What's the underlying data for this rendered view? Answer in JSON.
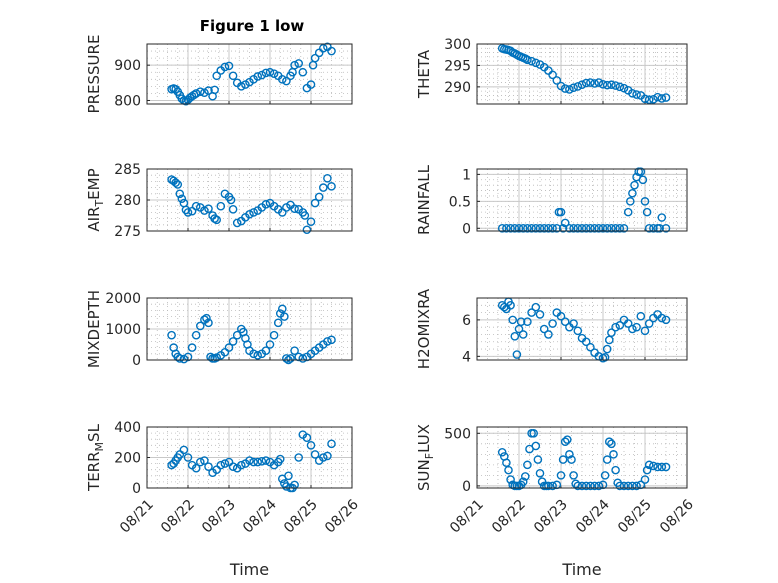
{
  "figure_title": "Figure 1 low",
  "xlabel": "Time",
  "x_tick_labels": [
    "08/21",
    "08/22",
    "08/23",
    "08/24",
    "08/25",
    "08/26"
  ],
  "colors": {
    "marker": "#0072BD",
    "axis": "#262626",
    "grid": "#c8c8c8"
  },
  "chart_data": [
    {
      "type": "scatter",
      "title": "Figure 1 low",
      "ylabel": "PRESSURE",
      "xlim": [
        0,
        5
      ],
      "ylim": [
        790,
        960
      ],
      "yticks": [
        800,
        900
      ],
      "series": [
        {
          "x": [
            0.6,
            0.65,
            0.7,
            0.75,
            0.8,
            0.85,
            0.9,
            0.95,
            1.0,
            1.05,
            1.1,
            1.15,
            1.2,
            1.3,
            1.4,
            1.5,
            1.6,
            1.65,
            1.7,
            1.8,
            1.9,
            2.0,
            2.1,
            2.2,
            2.3,
            2.4,
            2.5,
            2.6,
            2.7,
            2.8,
            2.9,
            3.0,
            3.1,
            3.2,
            3.3,
            3.4,
            3.5,
            3.55,
            3.6,
            3.7,
            3.8,
            3.9,
            4.0,
            4.05,
            4.1,
            4.2,
            4.3,
            4.4,
            4.5
          ],
          "y": [
            832,
            834,
            832,
            825,
            815,
            805,
            800,
            798,
            802,
            808,
            812,
            816,
            820,
            825,
            822,
            828,
            812,
            830,
            870,
            885,
            895,
            898,
            870,
            850,
            840,
            845,
            852,
            860,
            868,
            872,
            878,
            880,
            876,
            870,
            860,
            855,
            870,
            880,
            900,
            905,
            880,
            835,
            845,
            900,
            920,
            935,
            948,
            952,
            940
          ]
        }
      ]
    },
    {
      "type": "scatter",
      "ylabel": "THETA",
      "xlim": [
        0,
        5
      ],
      "ylim": [
        286,
        300
      ],
      "yticks": [
        290,
        295,
        300
      ],
      "series": [
        {
          "x": [
            0.6,
            0.65,
            0.7,
            0.75,
            0.8,
            0.85,
            0.9,
            0.95,
            1.0,
            1.05,
            1.1,
            1.15,
            1.2,
            1.3,
            1.4,
            1.5,
            1.6,
            1.7,
            1.8,
            1.9,
            2.0,
            2.1,
            2.2,
            2.3,
            2.4,
            2.5,
            2.6,
            2.7,
            2.8,
            2.9,
            3.0,
            3.1,
            3.2,
            3.3,
            3.4,
            3.5,
            3.6,
            3.7,
            3.8,
            3.9,
            4.0,
            4.1,
            4.2,
            4.3,
            4.4,
            4.5
          ],
          "y": [
            299,
            298.8,
            298.7,
            298.6,
            298.4,
            298,
            297.8,
            297.5,
            297.2,
            297,
            296.8,
            296.6,
            296.3,
            296,
            295.6,
            295.2,
            294.6,
            293.8,
            292.8,
            291.5,
            290.2,
            289.6,
            289.4,
            289.8,
            290.1,
            290.5,
            290.9,
            291,
            290.8,
            291,
            290.6,
            290.4,
            290.5,
            290.3,
            290,
            289.7,
            289.2,
            288.5,
            288.2,
            288,
            287.2,
            287,
            287.1,
            287.6,
            287.3,
            287.5
          ]
        }
      ]
    },
    {
      "type": "scatter",
      "ylabel": "AIR_TEMP",
      "xlim": [
        0,
        5
      ],
      "ylim": [
        275,
        285
      ],
      "yticks": [
        275,
        280,
        285
      ],
      "series": [
        {
          "x": [
            0.6,
            0.65,
            0.7,
            0.75,
            0.8,
            0.85,
            0.9,
            0.95,
            1.0,
            1.1,
            1.2,
            1.3,
            1.4,
            1.5,
            1.6,
            1.65,
            1.7,
            1.8,
            1.9,
            2.0,
            2.05,
            2.1,
            2.2,
            2.3,
            2.4,
            2.5,
            2.6,
            2.7,
            2.8,
            2.9,
            3.0,
            3.1,
            3.2,
            3.3,
            3.4,
            3.5,
            3.6,
            3.7,
            3.8,
            3.85,
            3.9,
            4.0,
            4.1,
            4.2,
            4.3,
            4.4,
            4.5
          ],
          "y": [
            283.3,
            283.1,
            282.8,
            282.5,
            281,
            280.2,
            279.5,
            278.4,
            278,
            278.2,
            279,
            278.8,
            278.3,
            278.6,
            277.5,
            277,
            276.8,
            279,
            281,
            280.5,
            280,
            278.5,
            276.3,
            276.6,
            277.2,
            277.7,
            278,
            278.3,
            278.8,
            279.3,
            279.5,
            279,
            278.5,
            278,
            278.8,
            279.2,
            278.6,
            278.5,
            278,
            277.5,
            275.2,
            276.5,
            279.5,
            280.5,
            282,
            283.5,
            282.2
          ]
        }
      ]
    },
    {
      "type": "scatter",
      "ylabel": "RAINFALL",
      "xlim": [
        0,
        5
      ],
      "ylim": [
        -0.05,
        1.1
      ],
      "yticks": [
        0,
        0.5,
        1
      ],
      "series": [
        {
          "x": [
            0.6,
            0.7,
            0.8,
            0.9,
            1.0,
            1.1,
            1.2,
            1.3,
            1.4,
            1.5,
            1.6,
            1.7,
            1.8,
            1.9,
            1.95,
            2.0,
            2.05,
            2.1,
            2.2,
            2.3,
            2.4,
            2.5,
            2.6,
            2.7,
            2.8,
            2.9,
            3.0,
            3.1,
            3.2,
            3.3,
            3.4,
            3.5,
            3.6,
            3.65,
            3.7,
            3.75,
            3.8,
            3.85,
            3.9,
            3.95,
            4.0,
            4.05,
            4.1,
            4.2,
            4.3,
            4.35,
            4.4,
            4.5
          ],
          "y": [
            0,
            0,
            0,
            0,
            0,
            0,
            0,
            0,
            0,
            0,
            0,
            0,
            0,
            0,
            0.3,
            0.3,
            0,
            0.1,
            0,
            0,
            0,
            0,
            0,
            0,
            0,
            0,
            0,
            0,
            0,
            0,
            0,
            0,
            0.3,
            0.5,
            0.65,
            0.8,
            0.95,
            1.05,
            1.05,
            0.9,
            0.5,
            0.3,
            0,
            0,
            0,
            0,
            0.2,
            0
          ]
        }
      ]
    },
    {
      "type": "scatter",
      "ylabel": "MIXDEPTH",
      "xlim": [
        0,
        5
      ],
      "ylim": [
        0,
        2000
      ],
      "yticks": [
        0,
        1000,
        2000
      ],
      "series": [
        {
          "x": [
            0.6,
            0.65,
            0.7,
            0.75,
            0.8,
            0.9,
            1.0,
            1.1,
            1.2,
            1.3,
            1.4,
            1.45,
            1.5,
            1.55,
            1.6,
            1.65,
            1.7,
            1.8,
            1.9,
            2.0,
            2.1,
            2.2,
            2.3,
            2.35,
            2.4,
            2.45,
            2.5,
            2.6,
            2.7,
            2.8,
            2.9,
            3.0,
            3.1,
            3.2,
            3.25,
            3.3,
            3.35,
            3.4,
            3.45,
            3.5,
            3.6,
            3.7,
            3.8,
            3.9,
            4.0,
            4.1,
            4.2,
            4.3,
            4.4,
            4.5
          ],
          "y": [
            800,
            400,
            200,
            100,
            50,
            30,
            100,
            400,
            800,
            1100,
            1300,
            1350,
            1200,
            100,
            50,
            50,
            80,
            150,
            250,
            400,
            600,
            800,
            1000,
            900,
            700,
            500,
            300,
            200,
            150,
            200,
            300,
            500,
            800,
            1200,
            1500,
            1650,
            1400,
            50,
            0,
            50,
            300,
            100,
            50,
            100,
            200,
            300,
            400,
            500,
            600,
            650
          ]
        }
      ]
    },
    {
      "type": "scatter",
      "ylabel": "H2OMIXRA",
      "xlim": [
        0,
        5
      ],
      "ylim": [
        3.8,
        7.2
      ],
      "yticks": [
        4,
        6
      ],
      "series": [
        {
          "x": [
            0.6,
            0.65,
            0.7,
            0.75,
            0.8,
            0.85,
            0.9,
            0.95,
            1.0,
            1.05,
            1.1,
            1.2,
            1.3,
            1.4,
            1.5,
            1.6,
            1.7,
            1.8,
            1.9,
            2.0,
            2.1,
            2.2,
            2.3,
            2.4,
            2.5,
            2.6,
            2.7,
            2.8,
            2.9,
            3.0,
            3.05,
            3.1,
            3.15,
            3.2,
            3.3,
            3.4,
            3.5,
            3.6,
            3.7,
            3.8,
            3.9,
            4.0,
            4.1,
            4.2,
            4.3,
            4.4,
            4.5
          ],
          "y": [
            6.8,
            6.7,
            6.6,
            7.0,
            6.8,
            6.0,
            5.1,
            4.1,
            5.5,
            5.9,
            5.2,
            5.9,
            6.4,
            6.7,
            6.3,
            5.5,
            5.2,
            5.8,
            6.4,
            6.2,
            5.9,
            5.6,
            5.8,
            5.4,
            5.0,
            4.8,
            4.5,
            4.2,
            4.0,
            3.9,
            3.95,
            4.4,
            4.9,
            5.3,
            5.6,
            5.7,
            6.0,
            5.8,
            5.5,
            5.6,
            6.2,
            5.4,
            5.8,
            6.1,
            6.3,
            6.1,
            6.0
          ]
        }
      ]
    },
    {
      "type": "scatter",
      "ylabel": "TERR_MSL",
      "xlim": [
        0,
        5
      ],
      "ylim": [
        0,
        400
      ],
      "yticks": [
        0,
        200,
        400
      ],
      "series": [
        {
          "x": [
            0.6,
            0.65,
            0.7,
            0.75,
            0.8,
            0.9,
            1.0,
            1.1,
            1.2,
            1.3,
            1.4,
            1.5,
            1.6,
            1.7,
            1.8,
            1.9,
            2.0,
            2.1,
            2.2,
            2.3,
            2.4,
            2.5,
            2.6,
            2.7,
            2.8,
            2.9,
            3.0,
            3.1,
            3.2,
            3.25,
            3.3,
            3.35,
            3.4,
            3.45,
            3.5,
            3.55,
            3.6,
            3.7,
            3.8,
            3.9,
            4.0,
            4.1,
            4.2,
            4.3,
            4.4,
            4.5
          ],
          "y": [
            150,
            160,
            180,
            200,
            220,
            250,
            200,
            150,
            130,
            170,
            180,
            140,
            100,
            120,
            150,
            160,
            170,
            140,
            130,
            150,
            160,
            180,
            170,
            170,
            175,
            180,
            170,
            150,
            170,
            190,
            60,
            30,
            10,
            80,
            0,
            0,
            20,
            200,
            350,
            330,
            280,
            220,
            180,
            200,
            210,
            290
          ]
        }
      ]
    },
    {
      "type": "scatter",
      "ylabel": "SUN_FLUX",
      "xlim": [
        0,
        5
      ],
      "ylim": [
        -20,
        560
      ],
      "yticks": [
        0,
        500
      ],
      "series": [
        {
          "x": [
            0.6,
            0.65,
            0.7,
            0.75,
            0.8,
            0.85,
            0.9,
            0.95,
            1.0,
            1.05,
            1.1,
            1.15,
            1.2,
            1.25,
            1.3,
            1.35,
            1.4,
            1.45,
            1.5,
            1.55,
            1.6,
            1.65,
            1.7,
            1.8,
            1.9,
            2.0,
            2.05,
            2.1,
            2.15,
            2.2,
            2.25,
            2.3,
            2.35,
            2.4,
            2.5,
            2.6,
            2.7,
            2.8,
            2.9,
            3.0,
            3.05,
            3.1,
            3.15,
            3.2,
            3.25,
            3.3,
            3.35,
            3.4,
            3.5,
            3.6,
            3.7,
            3.8,
            3.9,
            4.0,
            4.05,
            4.1,
            4.2,
            4.3,
            4.4,
            4.5
          ],
          "y": [
            320,
            280,
            220,
            150,
            60,
            10,
            0,
            0,
            0,
            10,
            40,
            90,
            200,
            350,
            500,
            500,
            380,
            250,
            120,
            40,
            0,
            0,
            0,
            0,
            10,
            100,
            250,
            420,
            440,
            300,
            250,
            100,
            20,
            0,
            0,
            0,
            0,
            0,
            0,
            10,
            100,
            250,
            420,
            400,
            300,
            150,
            30,
            0,
            0,
            0,
            0,
            0,
            10,
            60,
            150,
            200,
            190,
            180,
            180,
            180
          ]
        }
      ]
    }
  ]
}
